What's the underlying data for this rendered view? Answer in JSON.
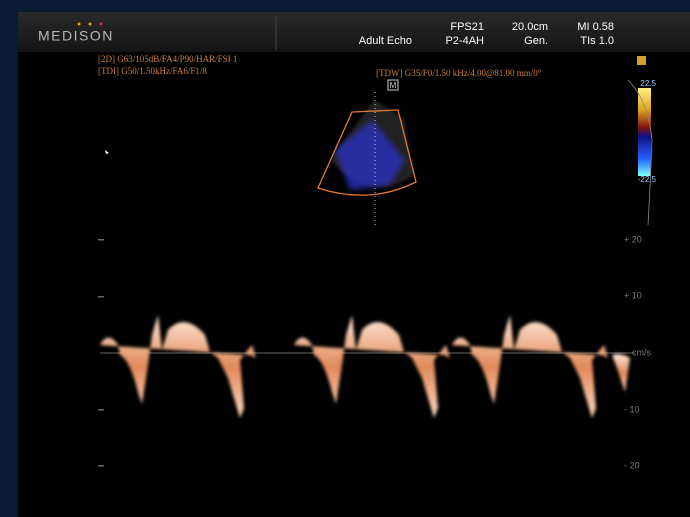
{
  "header": {
    "brand": "MEDISON",
    "preset": "Adult Echo",
    "fps": "FPS21",
    "probe": "P2-4AH",
    "depth": "20.0cm",
    "mode": "Gen.",
    "mi": "MI 0.58",
    "tis": "TIs 1.0"
  },
  "params": {
    "line_2d": "[2D] G63/105dB/FA4/P90/HAR/FSI 1",
    "line_tdi": "[TDI] G50/1.50kHz/FA6/F1/8",
    "line_tdw": "[TDW] G35/F0/1.50 kHz/4.00@81.00 mm/0°",
    "marker": "M"
  },
  "color_bar": {
    "top": "22.5",
    "bottom": "-22.5"
  },
  "scale": {
    "labels": [
      "+ 20",
      "+ 10",
      "cm/s",
      "- 10",
      "- 20"
    ]
  }
}
